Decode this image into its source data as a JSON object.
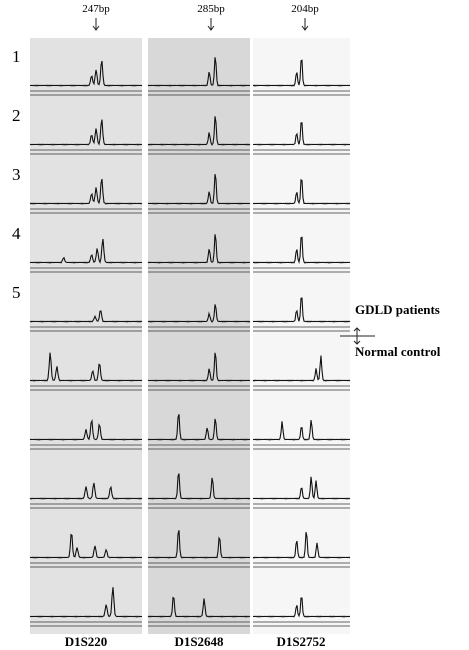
{
  "markers": [
    {
      "size": "247bp",
      "name": "D1S220"
    },
    {
      "size": "285bp",
      "name": "D1S2648"
    },
    {
      "size": "204bp",
      "name": "D1S2752"
    }
  ],
  "rows": [
    "1",
    "2",
    "3",
    "4",
    "5"
  ],
  "groups": {
    "patients": "GDLD patients",
    "control": "Normal control"
  }
}
